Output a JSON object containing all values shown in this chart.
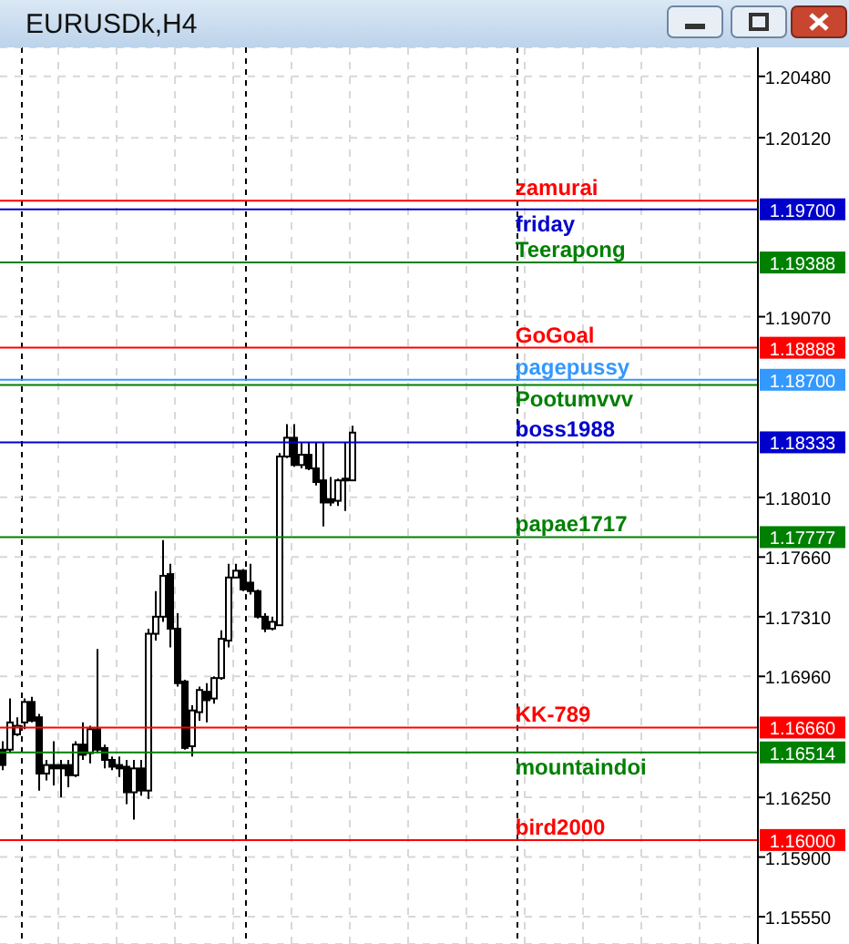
{
  "chart_data": {
    "type": "candlestick",
    "title": "EURUSDk,H4",
    "color": "#000000",
    "categories": [
      null,
      null,
      null,
      null,
      null,
      null,
      null,
      null,
      null,
      null,
      null,
      null,
      null,
      null,
      null,
      null,
      null,
      null,
      null,
      null,
      null,
      null,
      null,
      null,
      null,
      null,
      null,
      null,
      null,
      null,
      null,
      null,
      null,
      null,
      null,
      null,
      null,
      null,
      null,
      null,
      null,
      null,
      null,
      null,
      null,
      null,
      null,
      null,
      null,
      null,
      null,
      null,
      null,
      null,
      null,
      null,
      null,
      null,
      null,
      null,
      null,
      null,
      null,
      null,
      null,
      null,
      null,
      null,
      null,
      null,
      null,
      null,
      null,
      null,
      null,
      null,
      null,
      null,
      null,
      null,
      null,
      null,
      null,
      null,
      null,
      null,
      null,
      null,
      null,
      null,
      null,
      null,
      null,
      null,
      null,
      null,
      null,
      null,
      null,
      null,
      null,
      null,
      null,
      null
    ],
    "ohlc": [
      [
        1.1653,
        1.1658,
        1.1641,
        1.1644
      ],
      [
        1.1653,
        1.1683,
        1.1651,
        1.1669
      ],
      [
        1.1662,
        1.1672,
        1.1661,
        1.1667
      ],
      [
        1.1669,
        1.1683,
        1.1665,
        1.1681
      ],
      [
        1.1681,
        1.1684,
        1.1669,
        1.167
      ],
      [
        1.1672,
        1.1674,
        1.1629,
        1.1639
      ],
      [
        1.1639,
        1.1647,
        1.1635,
        1.1644
      ],
      [
        1.1644,
        1.1658,
        1.1632,
        1.1642
      ],
      [
        1.1644,
        1.1647,
        1.1625,
        1.1642
      ],
      [
        1.1644,
        1.1647,
        1.1631,
        1.1638
      ],
      [
        1.1638,
        1.1658,
        1.1637,
        1.1656
      ],
      [
        1.1656,
        1.1669,
        1.1647,
        1.165
      ],
      [
        1.1651,
        1.1667,
        1.1645,
        1.1665
      ],
      [
        1.1665,
        1.1712,
        1.1651,
        1.1653
      ],
      [
        1.1654,
        1.1656,
        1.1642,
        1.1647
      ],
      [
        1.1647,
        1.1649,
        1.1641,
        1.1643
      ],
      [
        1.1644,
        1.1649,
        1.1637,
        1.1642
      ],
      [
        1.1643,
        1.1647,
        1.1621,
        1.1628
      ],
      [
        1.1628,
        1.1647,
        1.1612,
        1.1642
      ],
      [
        1.1642,
        1.1647,
        1.1626,
        1.1629
      ],
      [
        1.1629,
        1.1724,
        1.1624,
        1.1721
      ],
      [
        1.1721,
        1.1746,
        1.1717,
        1.1731
      ],
      [
        1.1731,
        1.1776,
        1.1728,
        1.1755
      ],
      [
        1.1756,
        1.1762,
        1.1713,
        1.1724
      ],
      [
        1.1724,
        1.1733,
        1.169,
        1.1692
      ],
      [
        1.1693,
        1.1694,
        1.1653,
        1.1654
      ],
      [
        1.1655,
        1.1679,
        1.1649,
        1.1676
      ],
      [
        1.1675,
        1.169,
        1.167,
        1.1688
      ],
      [
        1.1687,
        1.1692,
        1.1669,
        1.1682
      ],
      [
        1.1683,
        1.1696,
        1.168,
        1.1695
      ],
      [
        1.1695,
        1.1723,
        1.1694,
        1.1718
      ],
      [
        1.1717,
        1.1762,
        1.1713,
        1.1754
      ],
      [
        1.1754,
        1.1762,
        1.1754,
        1.1758
      ],
      [
        1.1758,
        1.1759,
        1.1746,
        1.1747
      ],
      [
        1.1751,
        1.1762,
        1.1744,
        1.1746
      ],
      [
        1.1746,
        1.1747,
        1.173,
        1.1731
      ],
      [
        1.1731,
        1.1733,
        1.1722,
        1.1724
      ],
      [
        1.1724,
        1.1731,
        1.1723,
        1.1728
      ],
      [
        1.1726,
        1.1827,
        1.1726,
        1.1825
      ],
      [
        1.1825,
        1.1844,
        1.1824,
        1.1836
      ],
      [
        1.1836,
        1.1844,
        1.1819,
        1.182
      ],
      [
        1.182,
        1.1833,
        1.1818,
        1.1826
      ],
      [
        1.1826,
        1.1833,
        1.1817,
        1.1818
      ],
      [
        1.1818,
        1.1833,
        1.1808,
        1.181
      ],
      [
        1.1811,
        1.1833,
        1.1784,
        1.1798
      ],
      [
        1.18,
        1.1813,
        1.1796,
        1.1798
      ],
      [
        1.1799,
        1.1812,
        1.1796,
        1.1811
      ],
      [
        1.1812,
        1.1833,
        1.1793,
        1.1811
      ],
      [
        1.1811,
        1.1843,
        1.1811,
        1.1839
      ],
      null,
      null,
      null,
      null,
      null,
      null,
      null,
      null,
      null,
      null,
      null,
      null,
      null,
      null,
      null,
      null,
      null,
      null,
      null,
      null,
      null,
      null,
      null,
      null,
      null,
      null,
      null,
      null,
      null,
      null,
      null,
      null,
      null,
      null,
      null,
      null,
      null,
      null,
      null,
      null,
      null,
      null,
      null,
      null,
      null,
      null,
      null,
      null,
      null,
      null,
      null,
      null,
      null,
      null,
      null
    ],
    "ylim": [
      1.1539,
      1.2065
    ],
    "yticks": [
      {
        "value": 1.2048,
        "label": "1.20480"
      },
      {
        "value": 1.2012,
        "label": "1.20120"
      },
      {
        "value": 1.1907,
        "label": "1.19070"
      },
      {
        "value": 1.1801,
        "label": "1.18010"
      },
      {
        "value": 1.1766,
        "label": "1.17660"
      },
      {
        "value": 1.1731,
        "label": "1.17310"
      },
      {
        "value": 1.1696,
        "label": "1.16960"
      },
      {
        "value": 1.1625,
        "label": "1.16250"
      },
      {
        "value": 1.159,
        "label": "1.15900"
      },
      {
        "value": 1.1555,
        "label": "1.15550"
      }
    ],
    "annotations": [
      "1.19700",
      "1.19388",
      "1.18888",
      "1.18700",
      "1.18333",
      "1.17777",
      "1.16660",
      "1.16514",
      "1.16000"
    ],
    "ref_lines": [
      {
        "axis": "y",
        "value": 1.1975,
        "label": "zamurai",
        "color": "#ff0000"
      },
      {
        "axis": "y",
        "value": 1.197,
        "label": "friday",
        "color": "#0000cc"
      },
      {
        "axis": "y",
        "value": 1.19388,
        "label": "Teerapong",
        "color": "#008000"
      },
      {
        "axis": "y",
        "value": 1.18888,
        "label": "GoGoal",
        "color": "#ff0000"
      },
      {
        "axis": "y",
        "value": 1.187,
        "label": "pagepussy",
        "color": "#3399ff"
      },
      {
        "axis": "y",
        "value": 1.1867,
        "label": "Pootumvvv",
        "color": "#008000"
      },
      {
        "axis": "y",
        "value": 1.18333,
        "label": "boss1988",
        "color": "#0000cc"
      },
      {
        "axis": "y",
        "value": 1.17777,
        "label": "papae1717",
        "color": "#008000"
      },
      {
        "axis": "y",
        "value": 1.1666,
        "label": "KK-789",
        "color": "#ff0000"
      },
      {
        "axis": "y",
        "value": 1.16514,
        "label": "mountaindoi",
        "color": "#008000"
      },
      {
        "axis": "y",
        "value": 1.16,
        "label": "bird2000",
        "color": "#ff0000"
      }
    ],
    "grid": true,
    "tick_labels": "y"
  }
}
